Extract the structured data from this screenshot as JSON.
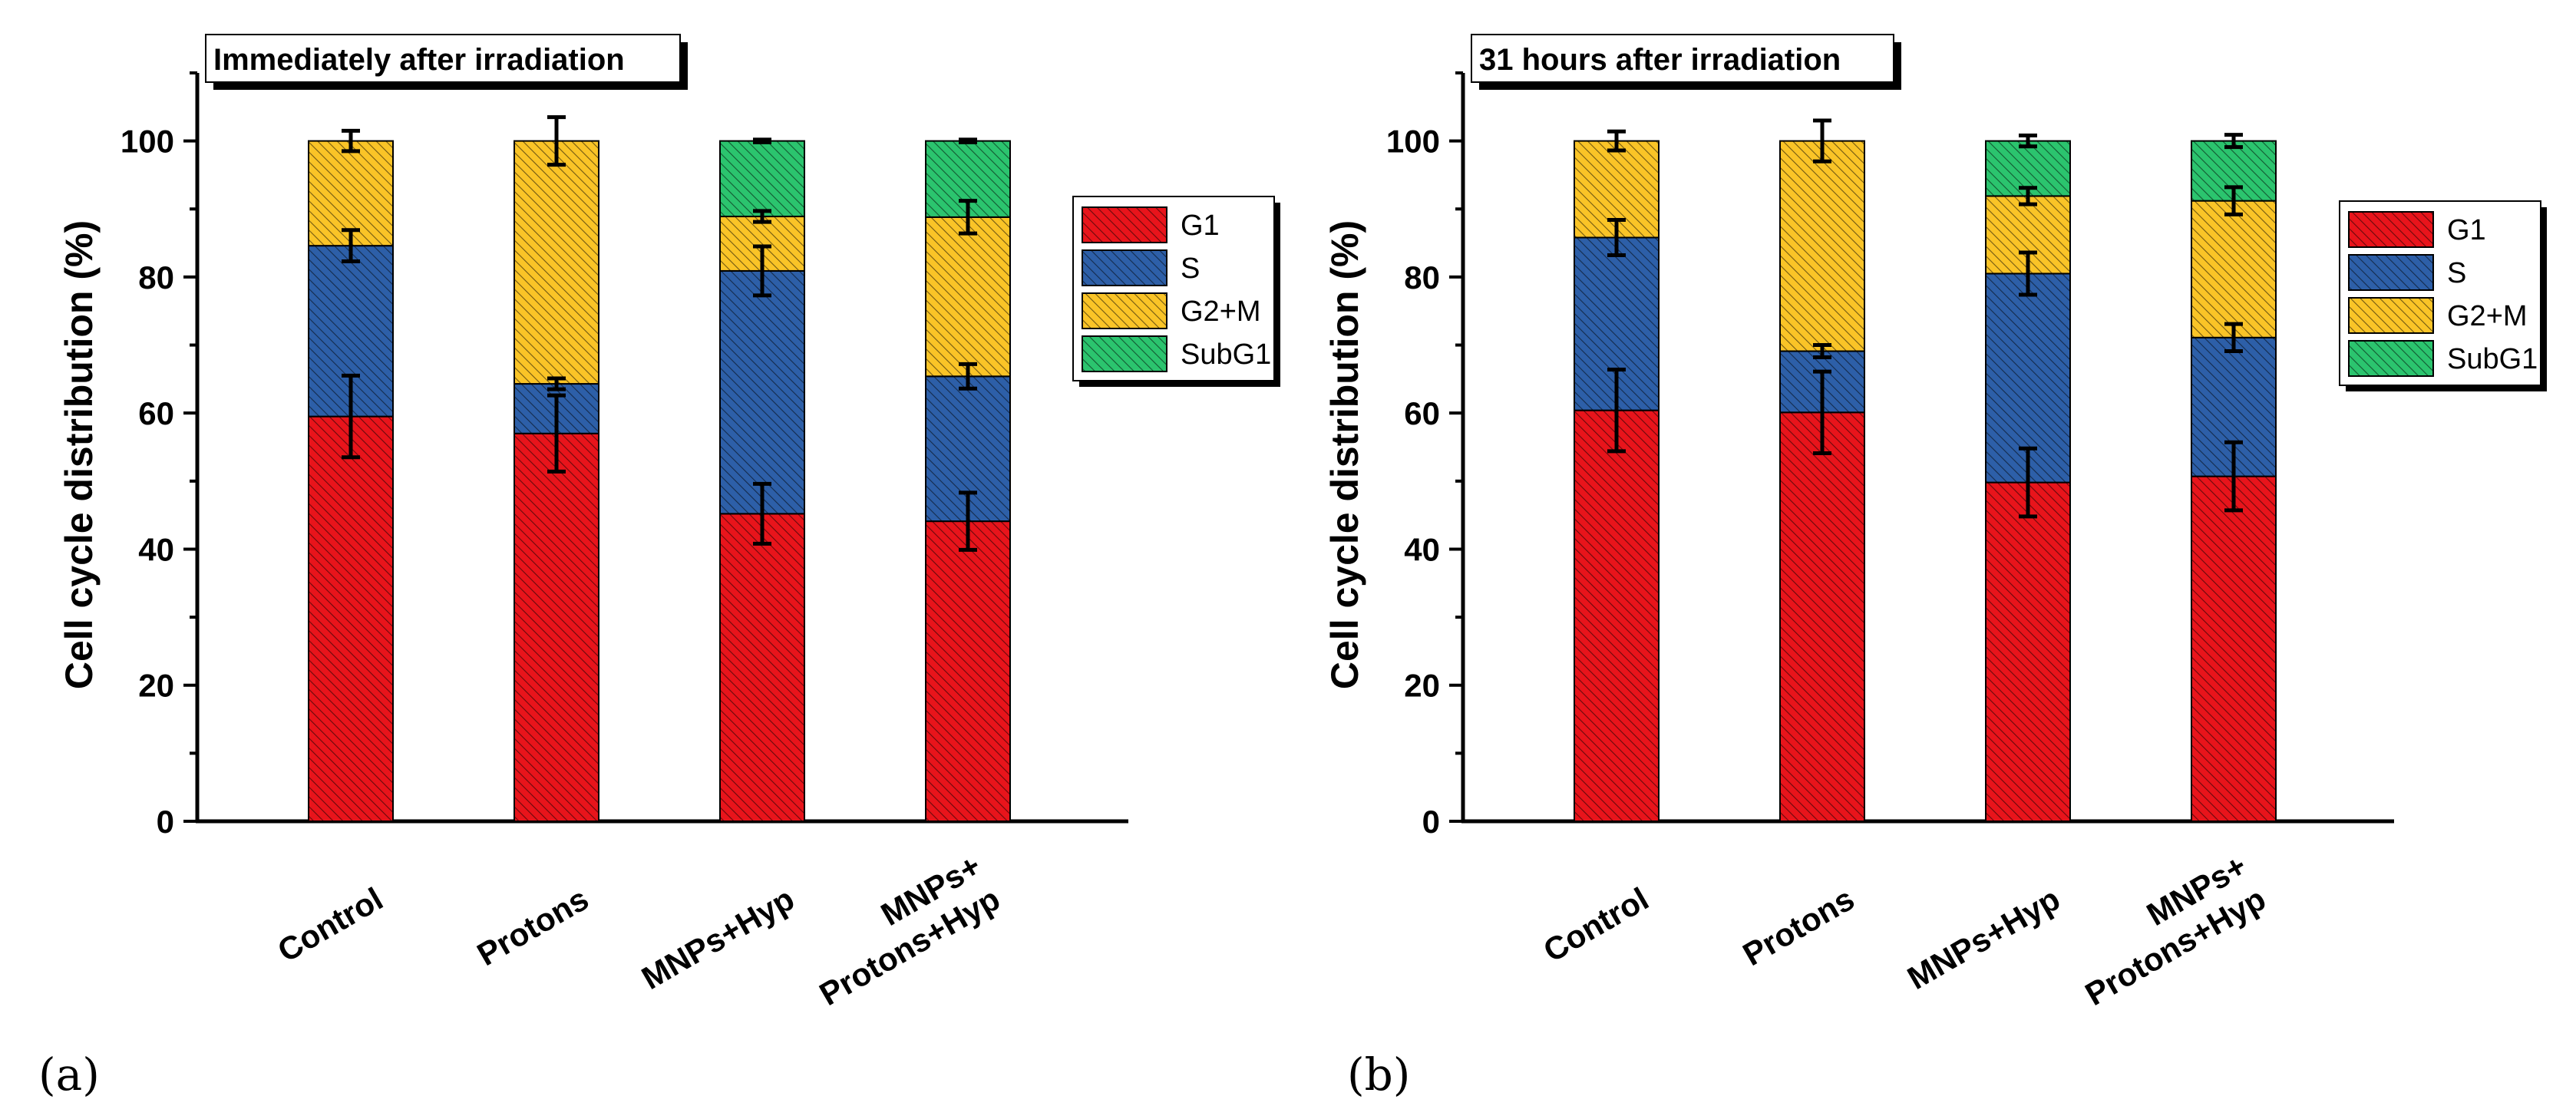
{
  "chart_data": [
    {
      "type": "bar",
      "stacked": true,
      "panel_label": "(a)",
      "title": "Immediately after irradiation",
      "ylabel": "Cell cycle distribution (%)",
      "xlabel": "",
      "ylim": [
        0,
        110
      ],
      "yticks": [
        0,
        20,
        40,
        60,
        80,
        100
      ],
      "ytick_labels": [
        "0",
        "20",
        "40",
        "60",
        "80",
        "100"
      ],
      "categories": [
        {
          "lines": [
            "Control"
          ]
        },
        {
          "lines": [
            "Protons"
          ]
        },
        {
          "lines": [
            "MNPs+Hyp"
          ]
        },
        {
          "lines": [
            "MNPs+",
            "Protons+Hyp"
          ]
        }
      ],
      "series": [
        {
          "name": "G1",
          "color": "#e8141b",
          "values": [
            59.5,
            57.0,
            45.2,
            44.1
          ],
          "errors": [
            6.0,
            5.6,
            4.4,
            4.2
          ]
        },
        {
          "name": "S",
          "color": "#2d5fa8",
          "values": [
            25.1,
            7.3,
            35.7,
            21.3
          ],
          "errors": [
            2.3,
            0.8,
            3.6,
            1.8
          ]
        },
        {
          "name": "G2+M",
          "color": "#fac427",
          "values": [
            15.4,
            35.7,
            8.0,
            23.4
          ],
          "errors": [
            1.5,
            3.5,
            0.8,
            2.4
          ]
        },
        {
          "name": "SubG1",
          "color": "#2bc46e",
          "values": [
            0,
            0,
            11.1,
            11.2
          ],
          "errors": [
            0,
            0,
            0.2,
            0.2
          ]
        }
      ],
      "legend": "right"
    },
    {
      "type": "bar",
      "stacked": true,
      "panel_label": "(b)",
      "title": "31 hours after irradiation",
      "ylabel": "Cell cycle distribution (%)",
      "xlabel": "",
      "ylim": [
        0,
        110
      ],
      "yticks": [
        0,
        20,
        40,
        60,
        80,
        100
      ],
      "ytick_labels": [
        "0",
        "20",
        "40",
        "60",
        "80",
        "100"
      ],
      "categories": [
        {
          "lines": [
            "Control"
          ]
        },
        {
          "lines": [
            "Protons"
          ]
        },
        {
          "lines": [
            "MNPs+Hyp"
          ]
        },
        {
          "lines": [
            "MNPs+",
            "Protons+Hyp"
          ]
        }
      ],
      "series": [
        {
          "name": "G1",
          "color": "#e8141b",
          "values": [
            60.4,
            60.1,
            49.8,
            50.7
          ],
          "errors": [
            6.0,
            6.0,
            5.0,
            5.0
          ]
        },
        {
          "name": "S",
          "color": "#2d5fa8",
          "values": [
            25.4,
            9.0,
            30.7,
            20.4
          ],
          "errors": [
            2.6,
            0.9,
            3.1,
            2.0
          ]
        },
        {
          "name": "G2+M",
          "color": "#fac427",
          "values": [
            14.2,
            30.9,
            11.4,
            20.1
          ],
          "errors": [
            1.4,
            3.0,
            1.2,
            2.0
          ]
        },
        {
          "name": "SubG1",
          "color": "#2bc46e",
          "values": [
            0,
            0,
            8.1,
            8.8
          ],
          "errors": [
            0,
            0,
            0.8,
            0.9
          ]
        }
      ],
      "legend": "right"
    }
  ]
}
